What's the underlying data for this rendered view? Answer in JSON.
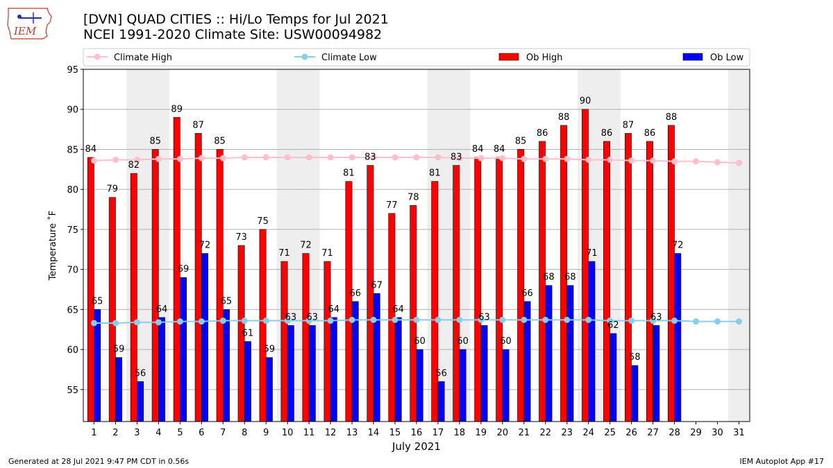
{
  "header": {
    "title_line1": "[DVN] QUAD CITIES :: Hi/Lo Temps for Jul 2021",
    "title_line2": "NCEI 1991-2020 Climate Site: USW00094982",
    "logo_text": "IEM"
  },
  "footer": {
    "generated": "Generated at 28 Jul 2021 9:47 PM CDT in 0.56s",
    "app": "IEM Autoplot App #17"
  },
  "colors": {
    "ob_high": "#ff0000",
    "ob_low": "#0000ff",
    "climate_high": "#ffc0cb",
    "climate_low": "#87ceeb",
    "weekend_band": "#eeeeee",
    "grid": "#b0b0b0"
  },
  "chart_data": {
    "type": "bar",
    "xlabel": "July 2021",
    "ylabel": "Temperature ˚F",
    "ylim": [
      51,
      95
    ],
    "yticks": [
      55,
      60,
      65,
      70,
      75,
      80,
      85,
      90,
      95
    ],
    "grid": "horizontal",
    "legend_position": "top",
    "categories": [
      "1",
      "2",
      "3",
      "4",
      "5",
      "6",
      "7",
      "8",
      "9",
      "10",
      "11",
      "12",
      "13",
      "14",
      "15",
      "16",
      "17",
      "18",
      "19",
      "20",
      "21",
      "22",
      "23",
      "24",
      "25",
      "26",
      "27",
      "28",
      "29",
      "30",
      "31"
    ],
    "weekend_days": [
      "3",
      "4",
      "10",
      "11",
      "17",
      "18",
      "24",
      "25",
      "31"
    ],
    "series": [
      {
        "name": "Climate High",
        "kind": "line",
        "values": [
          83.6,
          83.7,
          83.7,
          83.8,
          83.8,
          83.9,
          83.9,
          84.0,
          84.0,
          84.0,
          84.0,
          84.0,
          84.0,
          84.0,
          84.0,
          84.0,
          84.0,
          83.9,
          83.9,
          83.9,
          83.8,
          83.8,
          83.8,
          83.7,
          83.7,
          83.6,
          83.6,
          83.5,
          83.5,
          83.4,
          83.3
        ]
      },
      {
        "name": "Climate Low",
        "kind": "line",
        "values": [
          63.3,
          63.3,
          63.4,
          63.4,
          63.5,
          63.5,
          63.6,
          63.6,
          63.6,
          63.6,
          63.6,
          63.6,
          63.7,
          63.7,
          63.7,
          63.7,
          63.7,
          63.7,
          63.7,
          63.7,
          63.7,
          63.7,
          63.7,
          63.7,
          63.6,
          63.6,
          63.6,
          63.6,
          63.5,
          63.5,
          63.5
        ]
      },
      {
        "name": "Ob High",
        "kind": "bar",
        "values": [
          84,
          79,
          82,
          85,
          89,
          87,
          85,
          73,
          75,
          71,
          72,
          71,
          81,
          83,
          77,
          78,
          81,
          83,
          84,
          84,
          85,
          86,
          88,
          90,
          86,
          87,
          86,
          88,
          null,
          null,
          null
        ]
      },
      {
        "name": "Ob Low",
        "kind": "bar",
        "values": [
          65,
          59,
          56,
          64,
          69,
          72,
          65,
          61,
          59,
          63,
          63,
          64,
          66,
          67,
          64,
          60,
          56,
          60,
          63,
          60,
          66,
          68,
          68,
          71,
          62,
          58,
          63,
          72,
          null,
          null,
          null
        ]
      }
    ]
  }
}
